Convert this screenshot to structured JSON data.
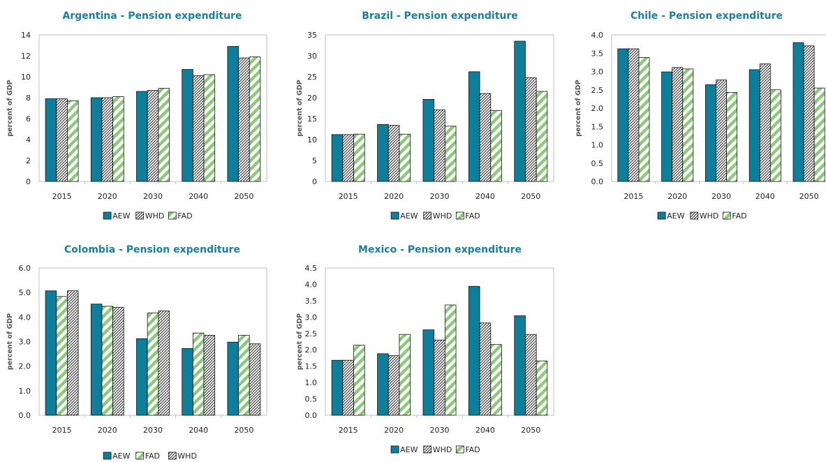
{
  "colors": {
    "AEW": "#0f7e9b",
    "WHD": "#333333",
    "FAD": "#8cc97a",
    "title": "#1a7f9c"
  },
  "chart_data": [
    {
      "type": "bar",
      "title": "Argentina - Pension expenditure",
      "ylabel": "percent of GDP",
      "ylim": [
        0,
        14
      ],
      "yticks": [
        "0",
        "2",
        "4",
        "6",
        "8",
        "10",
        "12",
        "14"
      ],
      "categories": [
        "2015",
        "2020",
        "2030",
        "2040",
        "2050"
      ],
      "series": [
        {
          "name": "AEW",
          "pattern": "AEW",
          "values": [
            7.9,
            8.0,
            8.6,
            10.7,
            12.9
          ]
        },
        {
          "name": "WHD",
          "pattern": "WHD",
          "values": [
            7.9,
            8.0,
            8.7,
            10.1,
            11.8
          ]
        },
        {
          "name": "FAD",
          "pattern": "FAD",
          "values": [
            7.7,
            8.1,
            8.9,
            10.2,
            11.9
          ]
        }
      ],
      "legend": "bottom"
    },
    {
      "type": "bar",
      "title": "Brazil - Pension expenditure",
      "ylabel": "percent of GDP",
      "ylim": [
        0,
        35
      ],
      "yticks": [
        "0",
        "5",
        "10",
        "15",
        "20",
        "25",
        "30",
        "35"
      ],
      "categories": [
        "2015",
        "2020",
        "2030",
        "2040",
        "2050"
      ],
      "series": [
        {
          "name": "AEW",
          "pattern": "AEW",
          "values": [
            11.2,
            13.6,
            19.6,
            26.2,
            33.5
          ]
        },
        {
          "name": "WHD",
          "pattern": "WHD",
          "values": [
            11.2,
            13.4,
            17.1,
            21.0,
            24.8
          ]
        },
        {
          "name": "FAD",
          "pattern": "FAD",
          "values": [
            11.3,
            11.3,
            13.2,
            16.9,
            21.5
          ]
        }
      ],
      "legend": "bottom"
    },
    {
      "type": "bar",
      "title": "Chile - Pension expenditure",
      "ylabel": "percent of GDP",
      "ylim": [
        0,
        4
      ],
      "yticks": [
        "0.0",
        "0.5",
        "1.0",
        "1.5",
        "2.0",
        "2.5",
        "3.0",
        "3.5",
        "4.0"
      ],
      "categories": [
        "2015",
        "2020",
        "2030",
        "2040",
        "2050"
      ],
      "series": [
        {
          "name": "AEW",
          "pattern": "AEW",
          "values": [
            3.62,
            2.99,
            2.64,
            3.05,
            3.79
          ]
        },
        {
          "name": "WHD",
          "pattern": "WHD",
          "values": [
            3.62,
            3.11,
            2.77,
            3.21,
            3.7
          ]
        },
        {
          "name": "FAD",
          "pattern": "FAD",
          "values": [
            3.38,
            3.07,
            2.43,
            2.5,
            2.55
          ]
        }
      ],
      "legend": "bottom"
    },
    {
      "type": "bar",
      "title": "Colombia - Pension expenditure",
      "ylabel": "percent of GDP",
      "ylim": [
        0,
        6
      ],
      "yticks": [
        "0.0",
        "1.0",
        "2.0",
        "3.0",
        "4.0",
        "5.0",
        "6.0"
      ],
      "categories": [
        "2015",
        "2020",
        "2030",
        "2040",
        "2050"
      ],
      "series": [
        {
          "name": "AEW",
          "pattern": "AEW",
          "values": [
            5.07,
            4.53,
            3.12,
            2.72,
            2.98
          ]
        },
        {
          "name": "FAD",
          "pattern": "FAD",
          "values": [
            4.84,
            4.44,
            4.17,
            3.35,
            3.26
          ]
        },
        {
          "name": "WHD",
          "pattern": "WHD",
          "values": [
            5.07,
            4.4,
            4.25,
            3.26,
            2.91
          ]
        }
      ],
      "legend": "bottom"
    },
    {
      "type": "bar",
      "title": "Mexico - Pension expenditure",
      "ylabel": "percent of GDP",
      "ylim": [
        0,
        4.5
      ],
      "yticks": [
        "0.0",
        "0.5",
        "1.0",
        "1.5",
        "2.0",
        "2.5",
        "3.0",
        "3.5",
        "4.0",
        "4.5"
      ],
      "categories": [
        "2015",
        "2020",
        "2030",
        "2040",
        "2050"
      ],
      "series": [
        {
          "name": "AEW",
          "pattern": "AEW",
          "values": [
            1.68,
            1.88,
            2.61,
            3.94,
            3.04
          ]
        },
        {
          "name": "WHD",
          "pattern": "WHD",
          "values": [
            1.68,
            1.82,
            2.3,
            2.82,
            2.47
          ]
        },
        {
          "name": "FAD",
          "pattern": "FAD",
          "values": [
            2.14,
            2.47,
            3.37,
            2.16,
            1.66
          ]
        }
      ],
      "legend": "bottom"
    }
  ]
}
